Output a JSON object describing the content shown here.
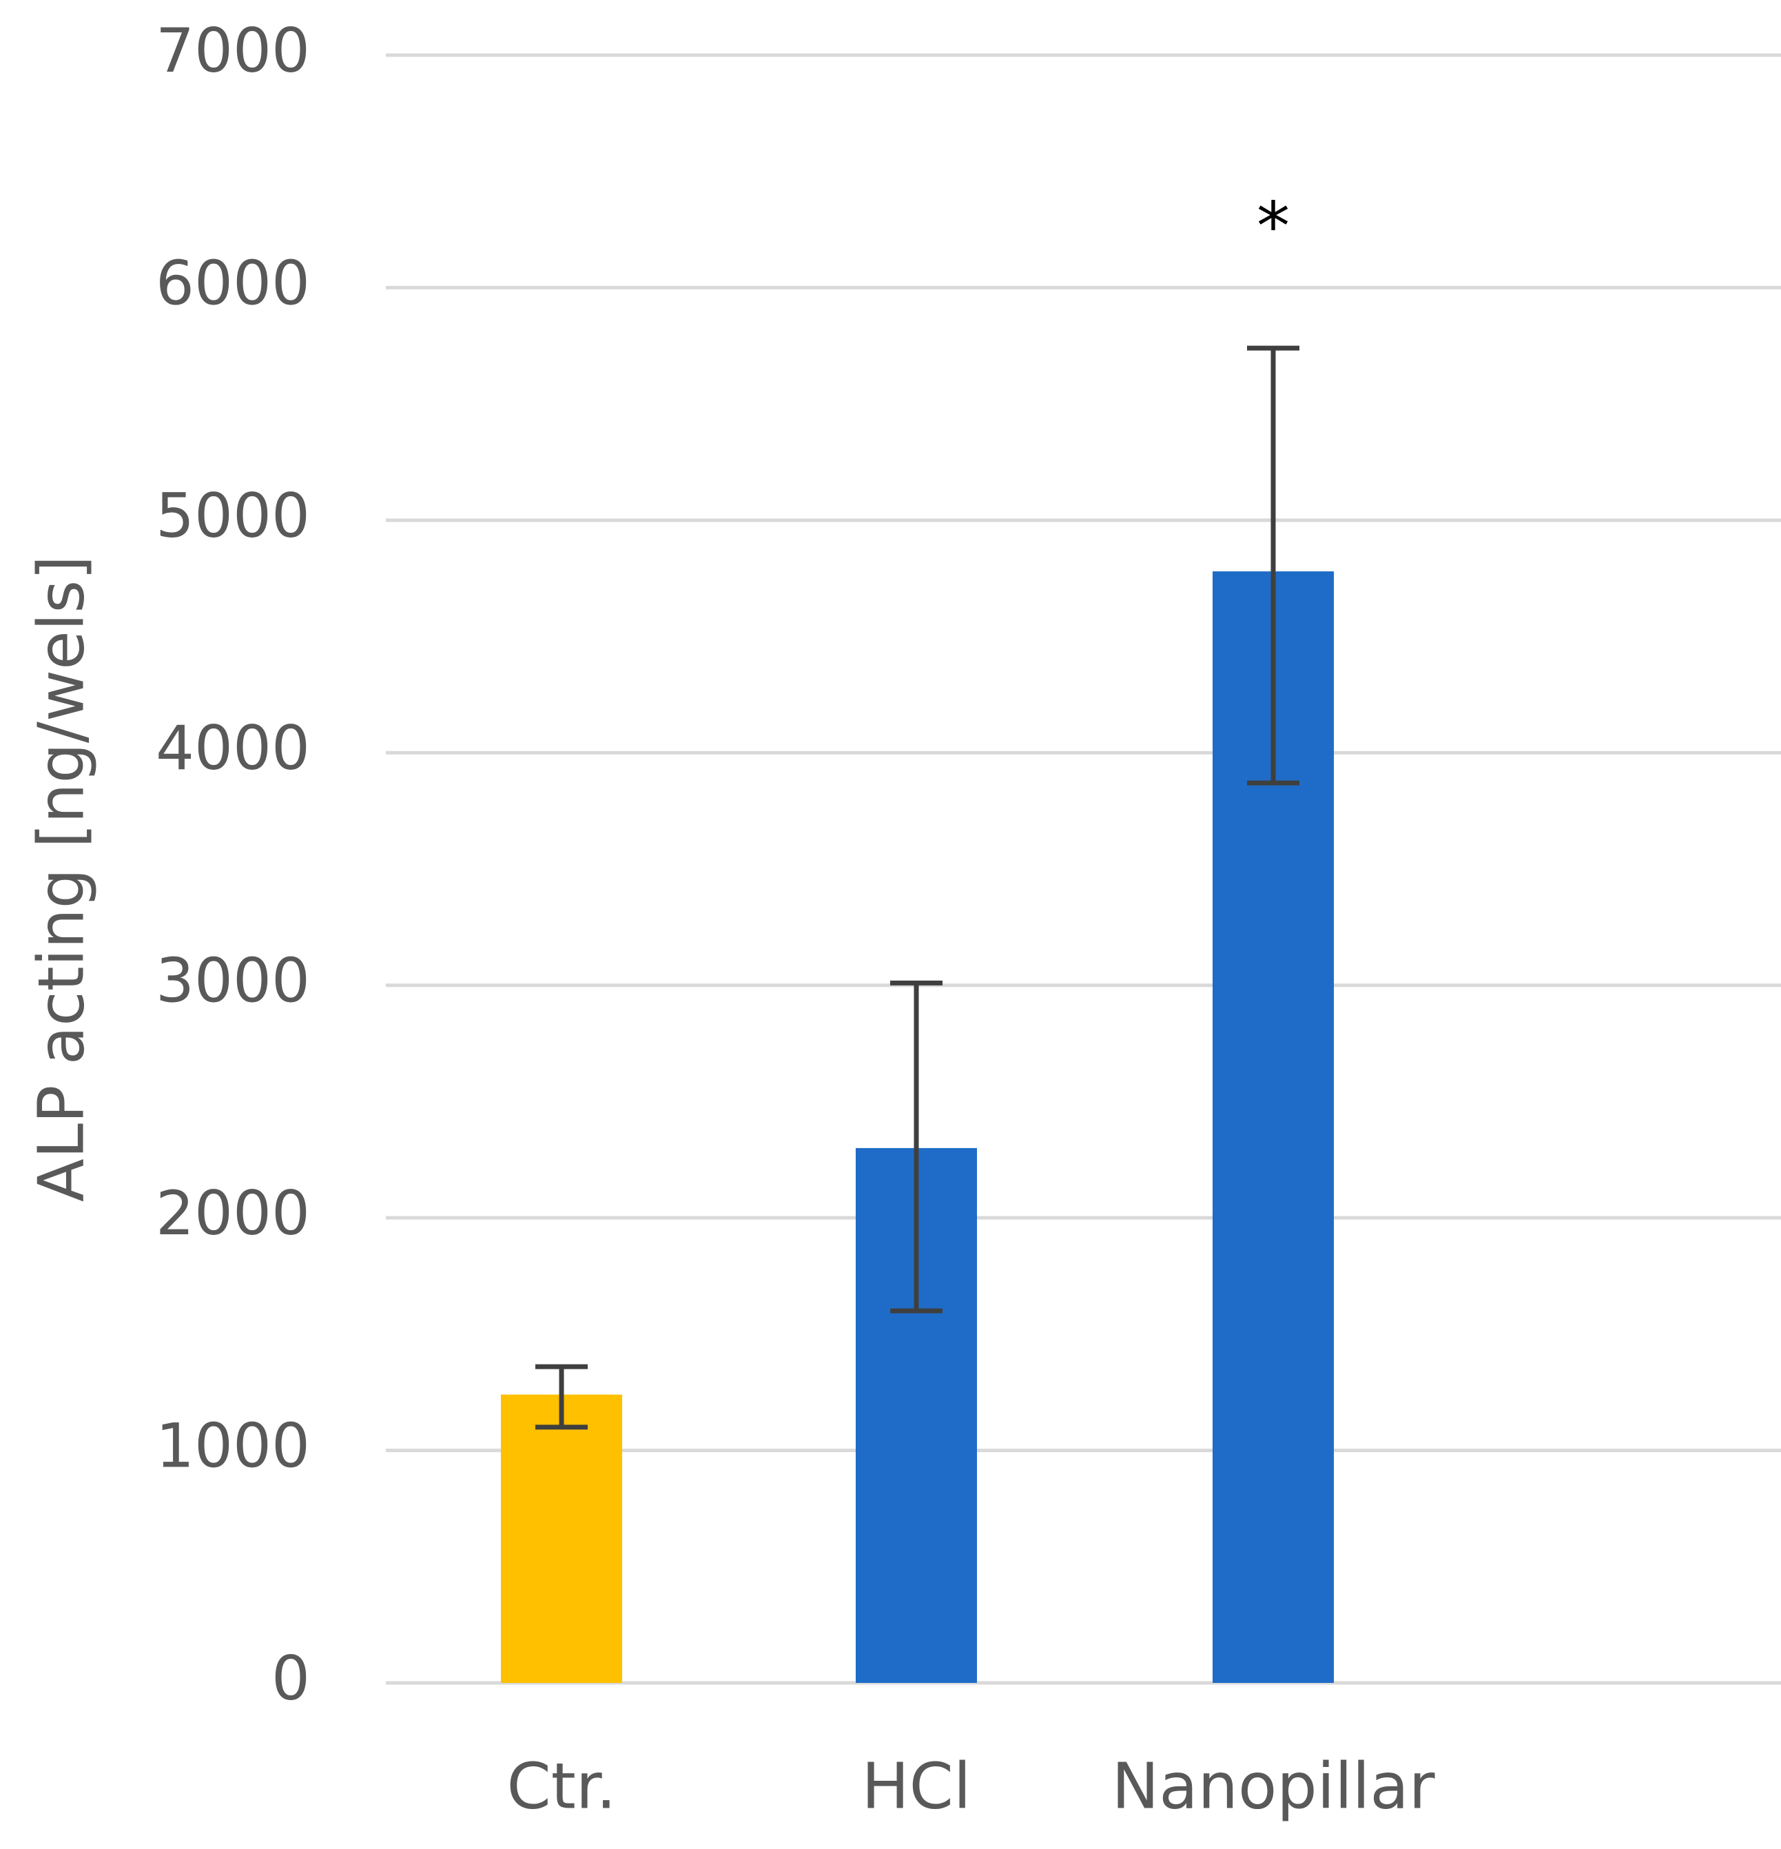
{
  "chart_data": {
    "type": "bar",
    "title": "",
    "xlabel": "",
    "ylabel": "ALP acting [ng/wels]",
    "categories": [
      "Ctr.",
      "HCl",
      "Nanopillar"
    ],
    "values": [
      1240,
      2300,
      4780
    ],
    "error": [
      {
        "low": 1100,
        "high": 1360
      },
      {
        "low": 1600,
        "high": 3010
      },
      {
        "low": 3870,
        "high": 5740
      }
    ],
    "bar_colors": [
      "#FFC000",
      "#1F6CC8",
      "#1F6CC8"
    ],
    "error_bar_color": "#3F3F3F",
    "gridline_color": "#D9D9D9",
    "ylim": [
      0,
      7000
    ],
    "yticks": [
      0,
      1000,
      2000,
      3000,
      4000,
      5000,
      6000,
      7000
    ],
    "grid": true,
    "legend": "none",
    "annotations": [
      {
        "category": "Nanopillar",
        "text": "*"
      }
    ]
  }
}
